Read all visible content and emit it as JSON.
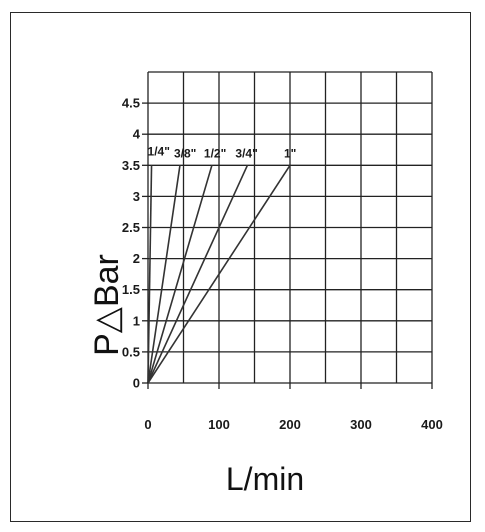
{
  "chart_data": {
    "type": "line",
    "xlabel": "L/min",
    "ylabel": "P△Bar",
    "xlim": [
      0,
      400
    ],
    "ylim": [
      0,
      5
    ],
    "xticks": [
      "0",
      "100",
      "200",
      "300",
      "400"
    ],
    "yticks": [
      "0",
      "0.5",
      "1",
      "1.5",
      "2",
      "2.5",
      "3",
      "3.5",
      "4",
      "4.5"
    ],
    "grid": true,
    "series": [
      {
        "name": "1/4\"",
        "x": [
          0,
          5
        ],
        "y": [
          0,
          3.5
        ]
      },
      {
        "name": "3/8\"",
        "x": [
          0,
          45
        ],
        "y": [
          0,
          3.5
        ]
      },
      {
        "name": "1/2\"",
        "x": [
          0,
          90
        ],
        "y": [
          0,
          3.5
        ]
      },
      {
        "name": "3/4\"",
        "x": [
          0,
          140
        ],
        "y": [
          0,
          3.5
        ]
      },
      {
        "name": "1\"",
        "x": [
          0,
          200
        ],
        "y": [
          0,
          3.5
        ]
      }
    ]
  }
}
